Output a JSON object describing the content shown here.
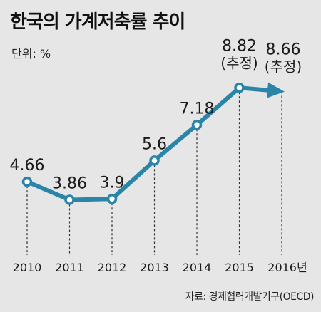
{
  "header": {
    "title": "한국의 가계저축률 추이",
    "unit": "단위: %"
  },
  "footer": {
    "source": "자료: 경제협력개발기구(OECD)"
  },
  "colors": {
    "background": "#e6e6e6",
    "line": "#2a86a8",
    "marker_fill": "#ffffff",
    "text": "#1a1a1a",
    "guide": "#333333"
  },
  "chart_data": {
    "type": "line",
    "categories": [
      "2010",
      "2011",
      "2012",
      "2013",
      "2014",
      "2015",
      "2016년"
    ],
    "values": [
      4.66,
      3.86,
      3.9,
      5.6,
      7.18,
      8.82,
      8.66
    ],
    "labels": [
      "4.66",
      "3.86",
      "3.9",
      "5.6",
      "7.18",
      "8.82",
      "8.66"
    ],
    "sublabels": [
      "",
      "",
      "",
      "",
      "",
      "(추정)",
      "(추정)"
    ],
    "estimated_from_index": 5,
    "last_point_marker": "arrow",
    "ylim": [
      2.3,
      10.5
    ],
    "grid": false,
    "vertical_guides": "dashed"
  }
}
